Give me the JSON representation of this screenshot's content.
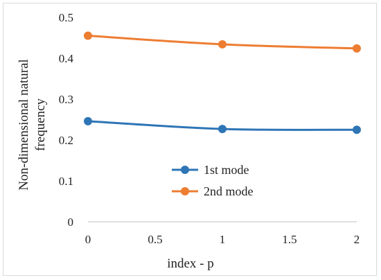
{
  "chart_data": {
    "type": "line",
    "title": "",
    "xlabel": "index - p",
    "ylabel_lines": [
      "Non-dimensional natural",
      "frequency"
    ],
    "x": [
      0,
      1,
      2
    ],
    "xlim": [
      0,
      2
    ],
    "ylim": [
      0,
      0.5
    ],
    "xticks": [
      "0",
      "0.5",
      "1",
      "1.5",
      "2"
    ],
    "yticks": [
      "0",
      "0.1",
      "0.2",
      "0.3",
      "0.4",
      "0.5"
    ],
    "grid": false,
    "legend_position": "center",
    "series": [
      {
        "name": "1st mode",
        "color": "#2e75b6",
        "values": [
          0.246,
          0.227,
          0.225
        ]
      },
      {
        "name": "2nd mode",
        "color": "#ed7d31",
        "values": [
          0.455,
          0.434,
          0.424
        ]
      }
    ]
  }
}
